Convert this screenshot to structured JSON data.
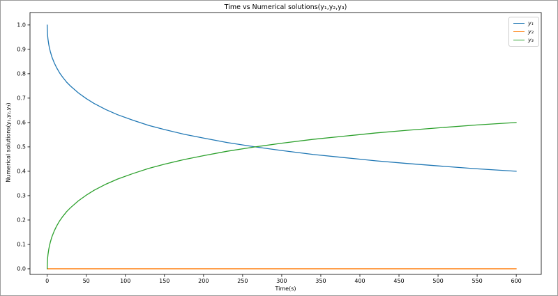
{
  "chart_data": {
    "type": "line",
    "title": "Time vs Numerical solutions(y₁,y₂,y₃)",
    "xlabel": "Time(s)",
    "ylabel": "Numerical solutions(y₁,y₂,y₃)",
    "xlim": [
      -22,
      632
    ],
    "ylim": [
      -0.023,
      1.051
    ],
    "xticks": [
      0,
      50,
      100,
      150,
      200,
      250,
      300,
      350,
      400,
      450,
      500,
      550,
      600
    ],
    "xtick_labels": [
      "0",
      "50",
      "100",
      "150",
      "200",
      "250",
      "300",
      "350",
      "400",
      "450",
      "500",
      "550",
      "600"
    ],
    "yticks": [
      0,
      0.1,
      0.2,
      0.3,
      0.4,
      0.5,
      0.6,
      0.7,
      0.8,
      0.9,
      1.0
    ],
    "ytick_labels": [
      "0.0",
      "0.1",
      "0.2",
      "0.3",
      "0.4",
      "0.5",
      "0.6",
      "0.7",
      "0.8",
      "0.9",
      "1.0"
    ],
    "grid": false,
    "legend_position": "upper right",
    "axis_color": "#000000",
    "background": "#ffffff",
    "series": [
      {
        "name": "y₁",
        "color": "#1f77b4",
        "x": [
          0,
          0.5,
          1,
          2,
          3,
          4,
          6,
          9,
          12,
          16,
          20,
          25,
          30,
          40,
          50,
          60,
          75,
          90,
          110,
          130,
          150,
          175,
          200,
          230,
          266,
          300,
          340,
          380,
          420,
          460,
          500,
          550,
          600
        ],
        "y": [
          1.0,
          0.958,
          0.942,
          0.92,
          0.904,
          0.891,
          0.869,
          0.845,
          0.825,
          0.803,
          0.785,
          0.765,
          0.749,
          0.721,
          0.698,
          0.678,
          0.653,
          0.632,
          0.609,
          0.588,
          0.571,
          0.552,
          0.536,
          0.518,
          0.5,
          0.485,
          0.469,
          0.456,
          0.443,
          0.432,
          0.422,
          0.41,
          0.4
        ]
      },
      {
        "name": "y₂",
        "color": "#ff7f0e",
        "x": [
          0,
          600
        ],
        "y": [
          0,
          0
        ]
      },
      {
        "name": "y₃",
        "color": "#2ca02c",
        "x": [
          0,
          0.5,
          1,
          2,
          3,
          4,
          6,
          9,
          12,
          16,
          20,
          25,
          30,
          40,
          50,
          60,
          75,
          90,
          110,
          130,
          150,
          175,
          200,
          230,
          266,
          300,
          340,
          380,
          420,
          460,
          500,
          550,
          600
        ],
        "y": [
          0.0,
          0.042,
          0.058,
          0.08,
          0.096,
          0.109,
          0.131,
          0.155,
          0.175,
          0.197,
          0.215,
          0.235,
          0.251,
          0.279,
          0.302,
          0.322,
          0.347,
          0.368,
          0.391,
          0.412,
          0.429,
          0.448,
          0.464,
          0.482,
          0.5,
          0.515,
          0.531,
          0.544,
          0.557,
          0.568,
          0.578,
          0.59,
          0.6
        ]
      }
    ]
  }
}
